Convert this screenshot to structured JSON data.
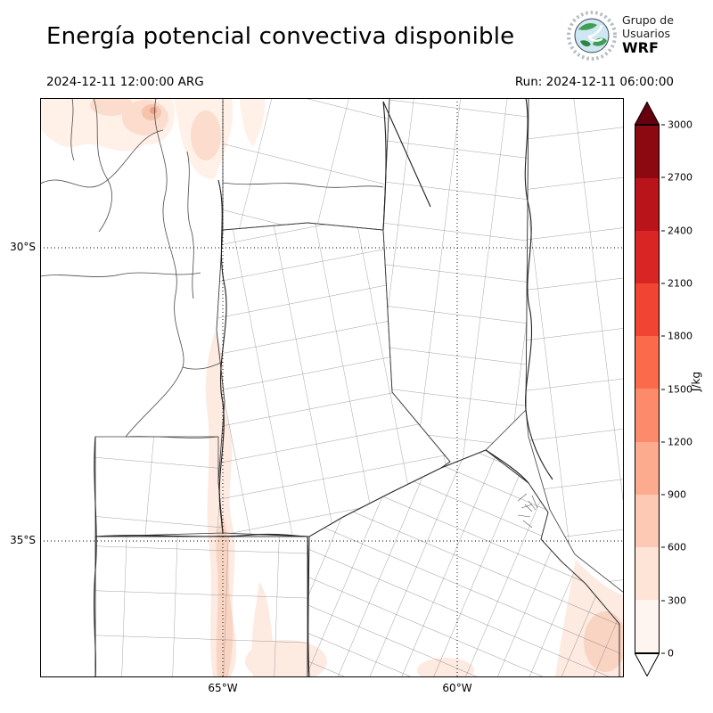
{
  "header": {
    "title": "Energía potencial convectiva disponible",
    "valid_time": "2024-12-11 12:00:00 ARG",
    "run_label": "Run: 2024-12-11 06:00:00",
    "logo": {
      "line1": "Grupo de",
      "line2": "Usuarios",
      "line3": "WRF"
    }
  },
  "chart_data": {
    "type": "heatmap",
    "title": "Energía potencial convectiva disponible",
    "variable": "CAPE",
    "units": "J/kg",
    "valid_time": "2024-12-11 12:00:00 ARG",
    "run": "2024-12-11 06:00:00",
    "x_ticks": [
      "65°W",
      "60°W"
    ],
    "y_ticks": [
      "30°S",
      "35°S"
    ],
    "grid": "dotted lat/lon lines at 30°S, 35°S, 65°W, 60°W",
    "basemap": "Argentina province and department boundaries (Córdoba, Santa Fe, Buenos Aires, La Pampa, San Luis, Santiago del Estero, Entre Ríos, La Rioja/Catamarca)",
    "colorbar": {
      "label": "J/kg",
      "orientation": "vertical-right",
      "ticks": [
        0,
        300,
        600,
        900,
        1200,
        1500,
        1800,
        2100,
        2400,
        2700,
        3000
      ],
      "colors": [
        "#fff5f0",
        "#fee3d7",
        "#fdc9b4",
        "#fcab8f",
        "#fc8a6b",
        "#fb6b4b",
        "#f14432",
        "#d92523",
        "#b81419",
        "#8c0912"
      ],
      "over_color": "#67000d",
      "under_color": "#ffffff"
    },
    "shaded_regions": [
      {
        "area": "northwest (La Rioja / Catamarca mountains)",
        "value_range_jkg": "0-600"
      },
      {
        "area": "narrow N-S band near 65°W through Córdoba / San Luis / La Pampa",
        "value_range_jkg": "0-600"
      },
      {
        "area": "south-central band near bottom edge",
        "value_range_jkg": "0-300"
      },
      {
        "area": "southeast coastal corner (Atlantic)",
        "value_range_jkg": "0-600"
      }
    ]
  }
}
